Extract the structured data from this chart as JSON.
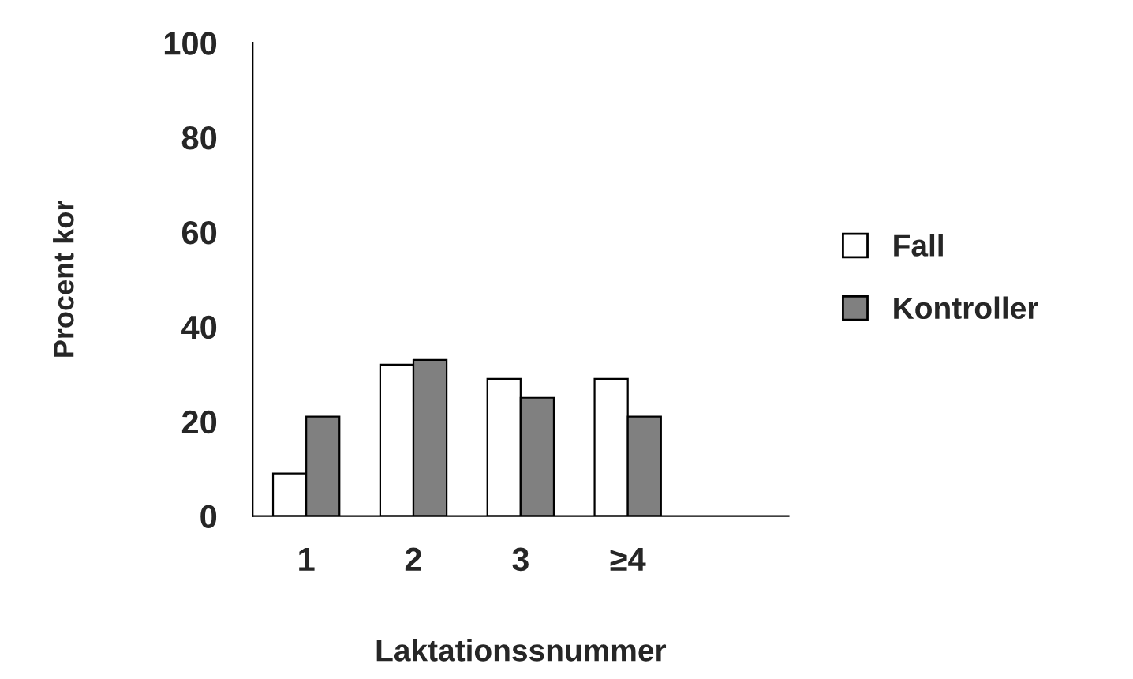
{
  "chart_data": {
    "type": "bar",
    "xlabel": "Laktationssnummer",
    "ylabel": "Procent kor",
    "categories": [
      "1",
      "2",
      "3",
      "≥4",
      null
    ],
    "series": [
      {
        "name": "Fall",
        "color": "#ffffff",
        "values": [
          9,
          32,
          29,
          29,
          null
        ]
      },
      {
        "name": "Kontroller",
        "color": "#808080",
        "values": [
          21,
          33,
          25,
          21,
          null
        ]
      }
    ],
    "ylim": [
      0,
      100
    ],
    "yticks": [
      0,
      20,
      40,
      60,
      80,
      100
    ],
    "grid": false,
    "legend": "right"
  }
}
